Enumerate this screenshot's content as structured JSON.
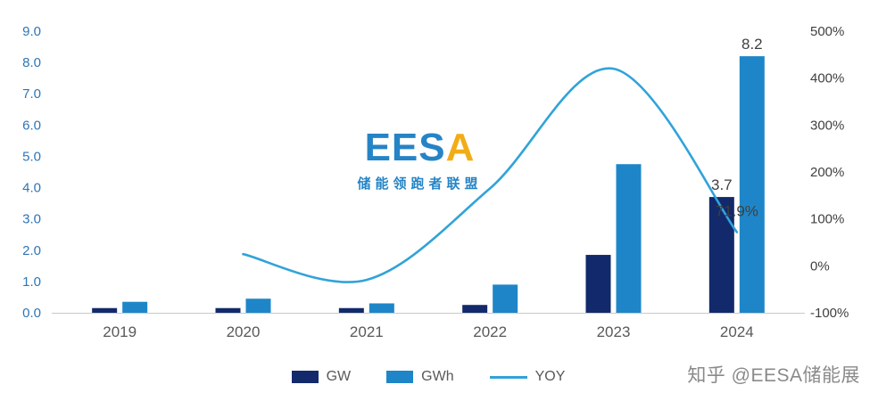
{
  "colors": {
    "gw": "#122a6b",
    "gwh": "#1e86c8",
    "yoy": "#31a3d9",
    "baseline": "#c9c9c9",
    "axis_left": "#2e75b6",
    "axis_right": "#404040",
    "axis_x": "#595959",
    "data_label": "#3f3f3f",
    "wm_blue": "#1a7ec3",
    "wm_gold": "#f2a90a",
    "attribution_color": "#8a8a8a"
  },
  "chart_data": {
    "type": "bar+line",
    "title": "",
    "xlabel": "",
    "ylabel_left": "",
    "ylabel_right": "",
    "categories": [
      "2019",
      "2020",
      "2021",
      "2022",
      "2023",
      "2024"
    ],
    "series": [
      {
        "name": "GW",
        "type": "bar",
        "axis": "left",
        "values": [
          0.15,
          0.15,
          0.15,
          0.25,
          1.85,
          3.7
        ]
      },
      {
        "name": "GWh",
        "type": "bar",
        "axis": "left",
        "values": [
          0.35,
          0.45,
          0.3,
          0.9,
          4.75,
          8.2
        ]
      },
      {
        "name": "YOY",
        "type": "line",
        "axis": "right",
        "unit": "%",
        "values": [
          null,
          25,
          -30,
          165,
          420,
          71.9
        ]
      }
    ],
    "left_axis": {
      "min": 0,
      "max": 9,
      "step": 1,
      "ticks": [
        "9.0",
        "8.0",
        "7.0",
        "6.0",
        "5.0",
        "4.0",
        "3.0",
        "2.0",
        "1.0",
        "0.0"
      ]
    },
    "right_axis": {
      "min": -100,
      "max": 500,
      "step": 100,
      "ticks": [
        "500%",
        "400%",
        "300%",
        "200%",
        "100%",
        "0%",
        "-100%"
      ]
    },
    "data_labels": [
      {
        "series": "GW",
        "category": "2024",
        "text": "3.7"
      },
      {
        "series": "GWh",
        "category": "2024",
        "text": "8.2"
      },
      {
        "series": "YOY",
        "category": "2024",
        "text": "71.9%"
      }
    ],
    "grid": "baseline only",
    "legend_position": "bottom"
  },
  "legend": [
    {
      "label": "GW"
    },
    {
      "label": "GWh"
    },
    {
      "label": "YOY"
    }
  ],
  "watermark": {
    "logo_main": "EES",
    "logo_accent": "A",
    "tagline": "储能领跑者联盟"
  },
  "attribution": "知乎 @EESA储能展"
}
